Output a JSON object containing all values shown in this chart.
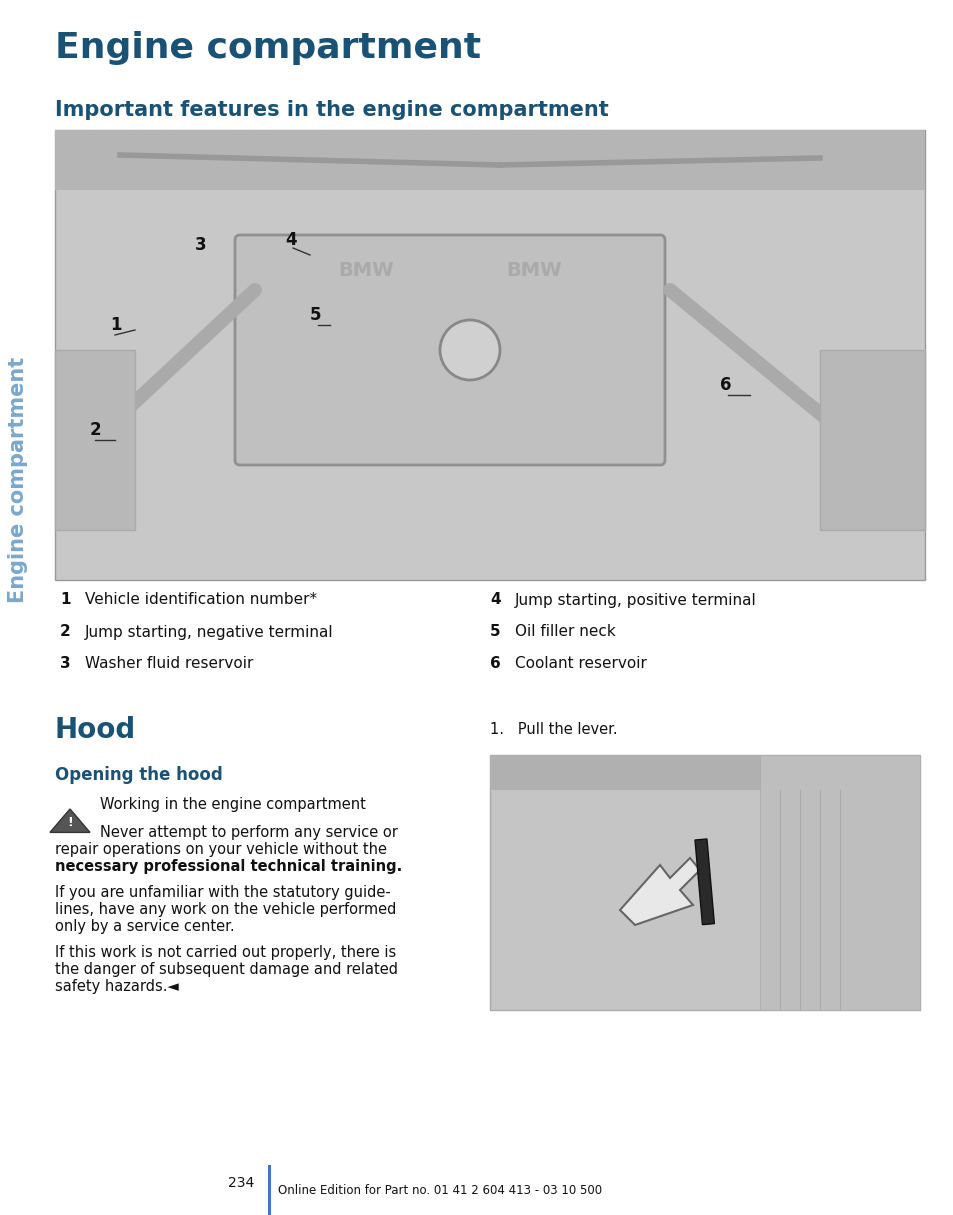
{
  "page_bg": "#ffffff",
  "sidebar_color": "#7aa7cc",
  "sidebar_text": "Engine compartment",
  "main_title": "Engine compartment",
  "main_title_color": "#1a5276",
  "main_title_fontsize": 26,
  "section1_title": "Important features in the engine compartment",
  "section1_title_color": "#1a5276",
  "section1_title_fontsize": 15,
  "items_left": [
    [
      "1",
      "Vehicle identification number*"
    ],
    [
      "2",
      "Jump starting, negative terminal"
    ],
    [
      "3",
      "Washer fluid reservoir"
    ]
  ],
  "items_right": [
    [
      "4",
      "Jump starting, positive terminal"
    ],
    [
      "5",
      "Oil filler neck"
    ],
    [
      "6",
      "Coolant reservoir"
    ]
  ],
  "hood_title": "Hood",
  "hood_title_color": "#1a5276",
  "hood_title_fontsize": 20,
  "opening_title": "Opening the hood",
  "opening_title_color": "#1a5276",
  "opening_title_fontsize": 12,
  "warning_line1": "Working in the engine compartment",
  "warning_body": "Never attempt to perform any service or\nrepair operations on your vehicle without the\nnecessary professional technical training.",
  "para2": "If you are unfamiliar with the statutory guide-\nlines, have any work on the vehicle performed\nonly by a service center.",
  "para3": "If this work is not carried out properly, there is\nthe danger of subsequent damage and related\nsafety hazards.◄",
  "step1_text": "1.   Pull the lever.",
  "page_number": "234",
  "footer_text": "Online Edition for Part no. 01 41 2 604 413 - 03 10 500",
  "item_fontsize": 11,
  "body_fontsize": 10.5
}
